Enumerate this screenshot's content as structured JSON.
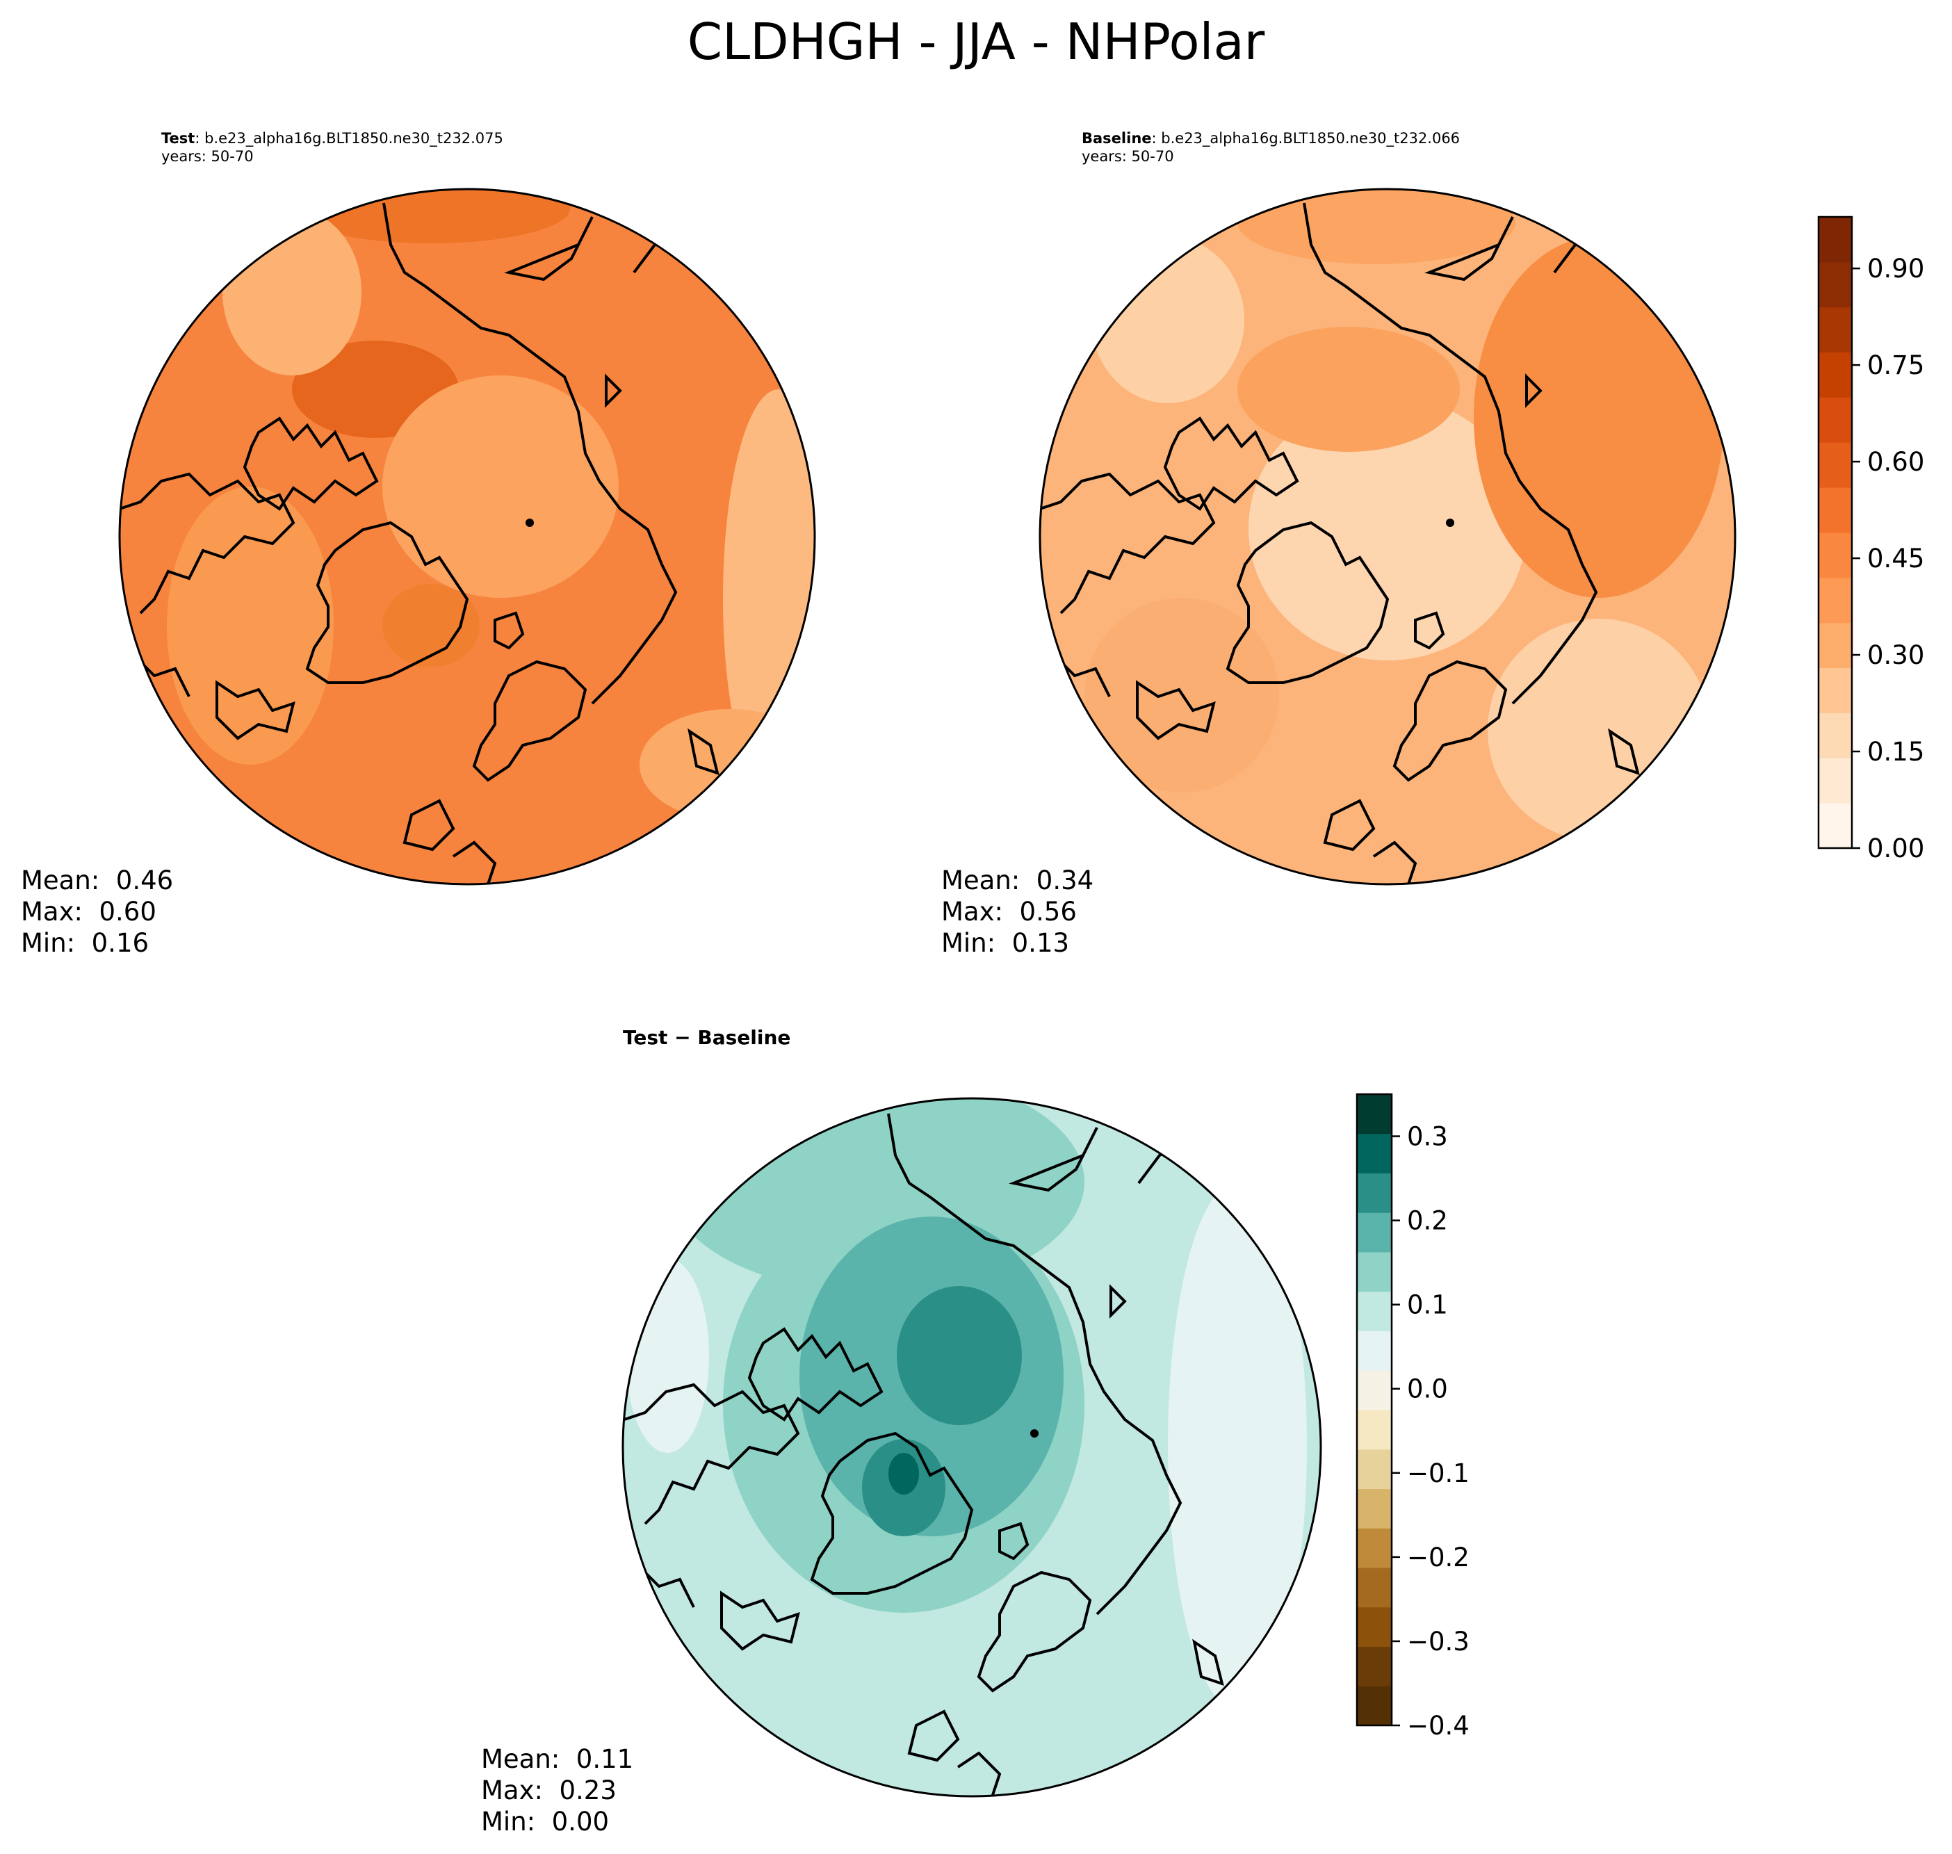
{
  "title": "CLDHGH - JJA - NHPolar",
  "panels": {
    "test": {
      "label": "Test",
      "case": ": b.e23_alpha16g.BLT1850.ne30_t232.075",
      "years": "years: 50-70",
      "mean": "Mean:  0.46",
      "max": "Max:  0.60",
      "min": "Min:  0.16"
    },
    "baseline": {
      "label": "Baseline",
      "case": ": b.e23_alpha16g.BLT1850.ne30_t232.066",
      "years": "years: 50-70",
      "mean": "Mean:  0.34",
      "max": "Max:  0.56",
      "min": "Min:  0.13"
    },
    "diff": {
      "label": "Test − Baseline",
      "mean": "Mean:  0.11",
      "max": "Max:  0.23",
      "min": "Min:  0.00"
    }
  },
  "colorbars": {
    "main": {
      "cmap": "Oranges",
      "ticks": [
        "0.00",
        "0.15",
        "0.30",
        "0.45",
        "0.60",
        "0.75",
        "0.90"
      ],
      "colors": [
        "#fff5eb",
        "#fee9d3",
        "#fdd9b4",
        "#fdc692",
        "#fdad6c",
        "#fd9a55",
        "#f9873f",
        "#f3722c",
        "#e55f1a",
        "#d94e0f",
        "#c54102",
        "#a93703",
        "#8d2d04",
        "#7f2704"
      ]
    },
    "diff": {
      "cmap": "BrBG",
      "ticks": [
        "0.3",
        "0.2",
        "0.1",
        "0.0",
        "−0.1",
        "−0.2",
        "−0.3",
        "−0.4"
      ],
      "colors": [
        "#003c30",
        "#01665e",
        "#2a8f86",
        "#5ab4ac",
        "#8fd3c6",
        "#c2e8e2",
        "#e5f3f2",
        "#f5f1e4",
        "#f6e8c3",
        "#e8d29c",
        "#d8b36a",
        "#bf8a3a",
        "#a36a20",
        "#8c510a",
        "#6a3d08",
        "#543005"
      ]
    }
  },
  "chart_data": {
    "type": "polar_map",
    "variable": "CLDHGH",
    "season": "JJA",
    "region": "NHPolar",
    "panels": [
      {
        "name": "Test",
        "mean": 0.46,
        "max": 0.6,
        "min": 0.16,
        "clim": [
          0.0,
          1.0
        ],
        "fill_value": 0.46
      },
      {
        "name": "Baseline",
        "mean": 0.34,
        "max": 0.56,
        "min": 0.13,
        "clim": [
          0.0,
          1.0
        ],
        "fill_value": 0.34
      },
      {
        "name": "Test − Baseline",
        "mean": 0.11,
        "max": 0.23,
        "min": 0.0,
        "clim": [
          -0.4,
          0.35
        ],
        "fill_value": 0.11
      }
    ]
  }
}
